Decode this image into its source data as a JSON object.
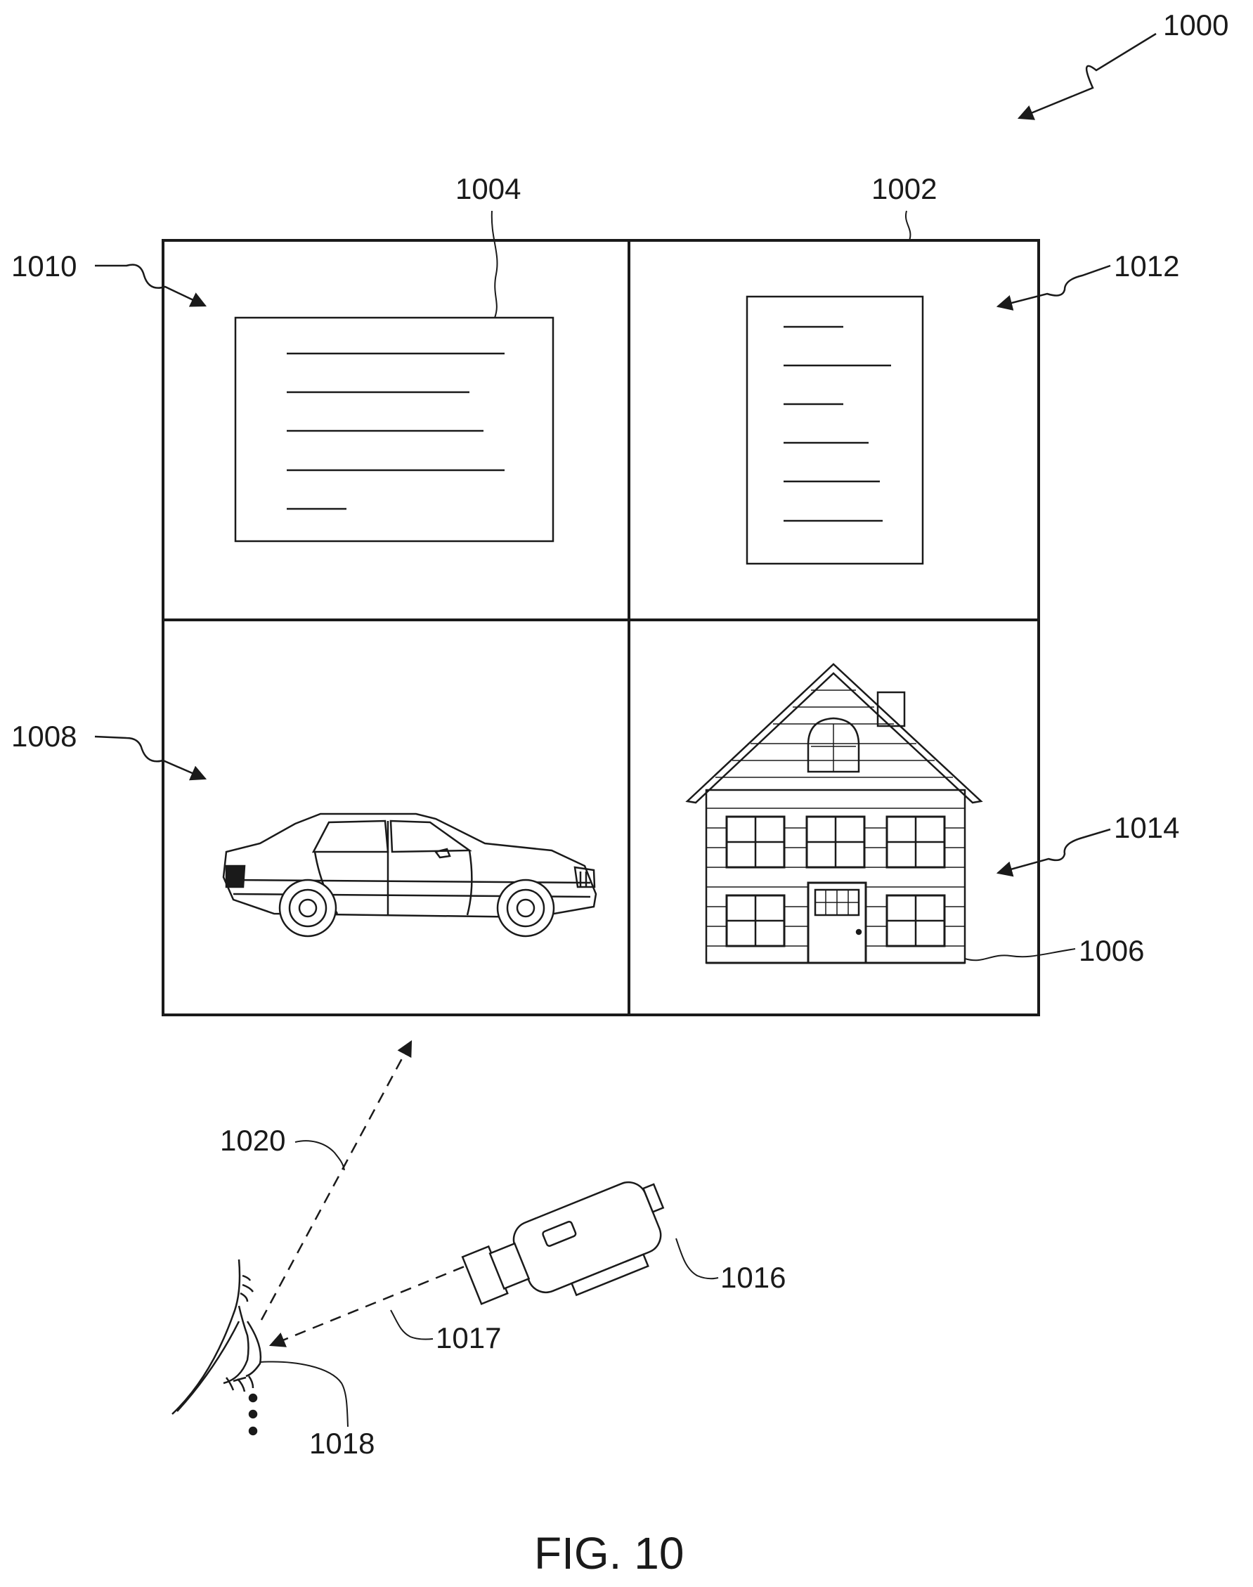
{
  "figure": {
    "ref_numerals": {
      "system": "1000",
      "display": "1002",
      "text_doc_landscape": "1004",
      "house_image": "1006",
      "region_bottom_left": "1008",
      "region_top_left": "1010",
      "region_top_right": "1012",
      "region_bottom_right": "1014",
      "camera": "1016",
      "camera_ray": "1017",
      "eye": "1018",
      "gaze_ray": "1020"
    },
    "caption": "FIG. 10"
  }
}
